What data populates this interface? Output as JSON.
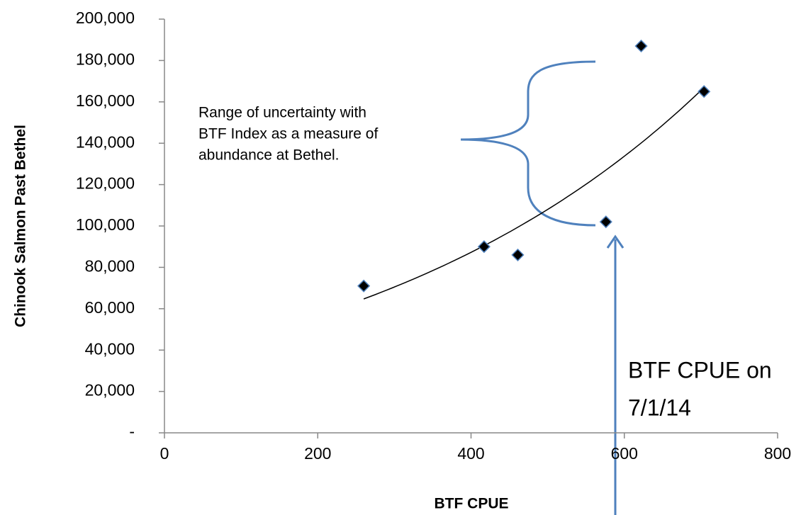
{
  "chart_data": {
    "type": "scatter",
    "x_label": "BTF CPUE",
    "y_label": "Chinook Salmon Past Bethel",
    "x": [
      260,
      417,
      461,
      576,
      622,
      704
    ],
    "values": [
      71000,
      90000,
      86000,
      102000,
      187000,
      165000
    ],
    "color": "#000000",
    "edge_color": "#4f81bd",
    "trendline": "exponential",
    "xlim": [
      0,
      800
    ],
    "xticks": [
      0,
      200,
      400,
      600,
      800
    ],
    "ylim": [
      0,
      200000
    ],
    "yticks": [
      {
        "value": 0,
        "label": "-"
      },
      {
        "value": 20000,
        "label": "20,000"
      },
      {
        "value": 40000,
        "label": "40,000"
      },
      {
        "value": 60000,
        "label": "60,000"
      },
      {
        "value": 80000,
        "label": "80,000"
      },
      {
        "value": 100000,
        "label": "100,000"
      },
      {
        "value": 120000,
        "label": "120,000"
      },
      {
        "value": 140000,
        "label": "140,000"
      },
      {
        "value": 160000,
        "label": "160,000"
      },
      {
        "value": 180000,
        "label": "180,000"
      },
      {
        "value": 200000,
        "label": "200,000"
      }
    ],
    "grid": false,
    "annotations": [
      {
        "lines": [
          "Range of uncertainty with",
          "BTF Index as a measure of",
          "abundance at Bethel."
        ]
      },
      {
        "lines": [
          "BTF CPUE on",
          "7/1/14"
        ]
      }
    ]
  }
}
